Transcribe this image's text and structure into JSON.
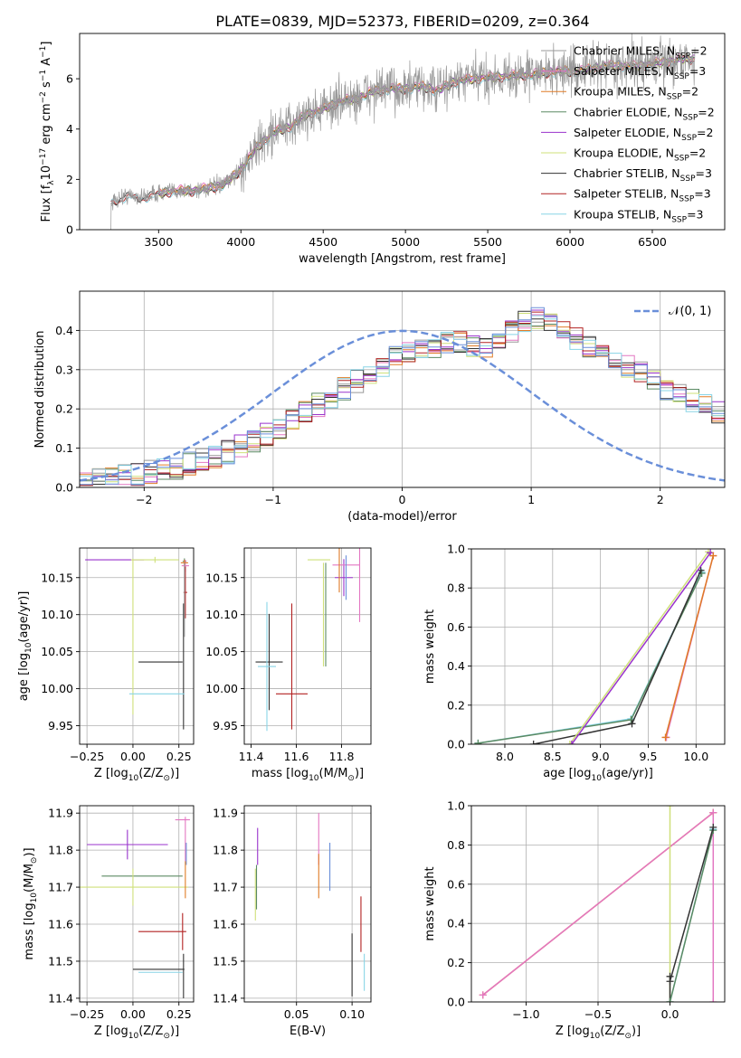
{
  "figure_title": "PLATE=0839, MJD=52373, FIBERID=0209, z=0.364",
  "colors": {
    "chabrier_miles": "#999999",
    "salpeter_miles": "#e377c2",
    "kroupa_miles": "#e07b26",
    "chabrier_elodie": "#5b8a63",
    "salpeter_elodie": "#9933cc",
    "kroupa_elodie": "#cfe07a",
    "chabrier_stelib": "#333333",
    "salpeter_stelib": "#b22222",
    "kroupa_stelib": "#88d4e6",
    "normal_curve": "#6a8fd9",
    "elodie_blue": "#6a8fd9"
  },
  "chart_data": [
    {
      "id": "spectrum",
      "type": "line",
      "xlabel": "wavelength [Angstrom, rest frame]",
      "ylabel": "Flux [f_λ10^-17 erg cm^-2 s^-1 A^-1]",
      "xlim": [
        3020,
        6940
      ],
      "ylim": [
        0,
        7.8
      ],
      "xticks": [
        3500,
        4000,
        4500,
        5000,
        5500,
        6000,
        6500
      ],
      "yticks": [
        0,
        2,
        4,
        6
      ],
      "grid": false,
      "legend_position": "top-right",
      "legend": [
        {
          "name": "Chabrier MILES, N_SSP=2",
          "color_key": "chabrier_miles"
        },
        {
          "name": "Salpeter MILES, N_SSP=3",
          "color_key": "salpeter_miles"
        },
        {
          "name": "Kroupa MILES, N_SSP=2",
          "color_key": "kroupa_miles"
        },
        {
          "name": "Chabrier ELODIE, N_SSP=2",
          "color_key": "chabrier_elodie"
        },
        {
          "name": "Salpeter ELODIE, N_SSP=2",
          "color_key": "salpeter_elodie"
        },
        {
          "name": "Kroupa ELODIE, N_SSP=2",
          "color_key": "kroupa_elodie"
        },
        {
          "name": "Chabrier STELIB, N_SSP=3",
          "color_key": "chabrier_stelib"
        },
        {
          "name": "Salpeter STELIB, N_SSP=3",
          "color_key": "salpeter_stelib"
        },
        {
          "name": "Kroupa STELIB, N_SSP=3",
          "color_key": "kroupa_stelib"
        }
      ],
      "model_continuum": [
        [
          3210,
          1.1
        ],
        [
          3300,
          1.35
        ],
        [
          3400,
          1.3
        ],
        [
          3500,
          1.45
        ],
        [
          3600,
          1.55
        ],
        [
          3700,
          1.55
        ],
        [
          3800,
          1.65
        ],
        [
          3900,
          1.8
        ],
        [
          4000,
          2.4
        ],
        [
          4100,
          3.3
        ],
        [
          4200,
          3.9
        ],
        [
          4300,
          4.1
        ],
        [
          4400,
          4.6
        ],
        [
          4500,
          4.8
        ],
        [
          4600,
          5.1
        ],
        [
          4700,
          5.2
        ],
        [
          4800,
          5.5
        ],
        [
          4900,
          5.6
        ],
        [
          5000,
          5.6
        ],
        [
          5100,
          5.7
        ],
        [
          5200,
          5.55
        ],
        [
          5300,
          5.9
        ],
        [
          5400,
          6.0
        ],
        [
          5500,
          6.05
        ],
        [
          5600,
          6.1
        ],
        [
          5700,
          6.15
        ],
        [
          5800,
          6.2
        ],
        [
          5900,
          6.3
        ],
        [
          6000,
          6.3
        ],
        [
          6100,
          6.35
        ],
        [
          6200,
          6.5
        ],
        [
          6300,
          6.55
        ],
        [
          6400,
          6.5
        ],
        [
          6500,
          6.6
        ],
        [
          6600,
          6.7
        ],
        [
          6700,
          6.8
        ]
      ]
    },
    {
      "id": "residuals",
      "type": "line",
      "xlabel": "(data-model)/error",
      "ylabel": "Normed distribution",
      "xlim": [
        -2.5,
        2.5
      ],
      "ylim": [
        0,
        0.5
      ],
      "xticks": [
        -2,
        -1,
        0,
        1,
        2
      ],
      "yticks": [
        0.0,
        0.1,
        0.2,
        0.3,
        0.4
      ],
      "grid": true,
      "legend_position": "top-right",
      "legend": [
        {
          "name": "𝒩(0, 1)",
          "color_key": "normal_curve"
        }
      ],
      "bin_width": 0.1,
      "bins_start": -2.5,
      "hist_base": [
        0.018,
        0.022,
        0.025,
        0.03,
        0.035,
        0.04,
        0.045,
        0.05,
        0.06,
        0.07,
        0.08,
        0.09,
        0.105,
        0.12,
        0.135,
        0.15,
        0.17,
        0.19,
        0.21,
        0.23,
        0.25,
        0.27,
        0.29,
        0.31,
        0.33,
        0.34,
        0.35,
        0.36,
        0.37,
        0.37,
        0.36,
        0.36,
        0.38,
        0.4,
        0.42,
        0.43,
        0.42,
        0.4,
        0.38,
        0.36,
        0.34,
        0.33,
        0.31,
        0.29,
        0.27,
        0.25,
        0.24,
        0.22,
        0.21,
        0.19,
        0.18,
        0.16,
        0.15,
        0.13,
        0.12,
        0.1,
        0.09,
        0.08,
        0.07,
        0.06,
        0.055,
        0.05,
        0.045,
        0.04,
        0.035,
        0.03,
        0.03,
        0.025,
        0.025,
        0.02
      ]
    },
    {
      "id": "age_vs_Z",
      "type": "scatter",
      "xlabel": "Z [log10(Z/Z⊙)]",
      "ylabel": "age  [log10(age/yr)]",
      "xlim": [
        -0.29,
        0.33
      ],
      "ylim": [
        9.925,
        10.19
      ],
      "xticks": [
        -0.25,
        0.0,
        0.25
      ],
      "yticks": [
        9.95,
        10.0,
        10.05,
        10.1,
        10.15
      ],
      "grid": true,
      "points": [
        {
          "key": "salpeter_elodie",
          "x": -0.1,
          "y": 10.174,
          "xerr": 0.16,
          "yerr": 0.0
        },
        {
          "key": "kroupa_elodie",
          "x": 0.12,
          "y": 10.174,
          "xerr": 0.13,
          "yerr": 0.004
        },
        {
          "key": "kroupa_elodie",
          "x": 0.0,
          "y": 10.07,
          "xerr": 0.0,
          "yerr": 0.105
        },
        {
          "key": "chabrier_elodie",
          "x": 0.28,
          "y": 10.172,
          "xerr": 0.01,
          "yerr": 0.004
        },
        {
          "key": "salpeter_miles",
          "x": 0.285,
          "y": 10.166,
          "xerr": 0.02,
          "yerr": 0.008
        },
        {
          "key": "kroupa_miles",
          "x": 0.28,
          "y": 10.17,
          "xerr": 0.02,
          "yerr": 0.004
        },
        {
          "key": "salpeter_stelib",
          "x": 0.285,
          "y": 10.13,
          "xerr": 0.01,
          "yerr": 0.035
        },
        {
          "key": "chabrier_stelib",
          "x": 0.15,
          "y": 10.036,
          "xerr": 0.12,
          "yerr": 0.0
        },
        {
          "key": "chabrier_stelib",
          "x": 0.275,
          "y": 10.03,
          "xerr": 0.0,
          "yerr": 0.085
        },
        {
          "key": "kroupa_stelib",
          "x": 0.13,
          "y": 9.993,
          "xerr": 0.15,
          "yerr": 0.0
        },
        {
          "key": "chabrier_miles",
          "x": 0.28,
          "y": 10.12,
          "xerr": 0.0,
          "yerr": 0.05
        }
      ]
    },
    {
      "id": "age_vs_mass",
      "type": "scatter",
      "xlabel": "mass [log10(M/M⊙)]",
      "ylabel": "",
      "xlim": [
        11.37,
        11.93
      ],
      "ylim": [
        9.925,
        10.19
      ],
      "xticks": [
        11.4,
        11.6,
        11.8
      ],
      "yticks": [
        9.95,
        10.0,
        10.05,
        10.1,
        10.15
      ],
      "grid": true,
      "points": [
        {
          "key": "kroupa_elodie",
          "x": 11.7,
          "y": 10.174,
          "xerr": 0.05,
          "yerr": 0.0
        },
        {
          "key": "kroupa_elodie",
          "x": 11.72,
          "y": 10.1,
          "xerr": 0.0,
          "yerr": 0.07
        },
        {
          "key": "chabrier_elodie",
          "x": 11.73,
          "y": 10.1,
          "xerr": 0.0,
          "yerr": 0.07
        },
        {
          "key": "salpeter_elodie",
          "x": 11.81,
          "y": 10.15,
          "xerr": 0.04,
          "yerr": 0.025
        },
        {
          "key": "salpeter_miles",
          "x": 11.82,
          "y": 10.167,
          "xerr": 0.06,
          "yerr": 0.0
        },
        {
          "key": "salpeter_miles",
          "x": 11.88,
          "y": 10.14,
          "xerr": 0.0,
          "yerr": 0.05
        },
        {
          "key": "kroupa_miles",
          "x": 11.79,
          "y": 10.16,
          "xerr": 0.0,
          "yerr": 0.03
        },
        {
          "key": "elodie_blue",
          "x": 11.82,
          "y": 10.15,
          "xerr": 0.0,
          "yerr": 0.03
        },
        {
          "key": "salpeter_stelib",
          "x": 11.58,
          "y": 9.993,
          "xerr": 0.07,
          "yerr": 0.0
        },
        {
          "key": "salpeter_stelib",
          "x": 11.58,
          "y": 10.03,
          "xerr": 0.0,
          "yerr": 0.085
        },
        {
          "key": "chabrier_stelib",
          "x": 11.48,
          "y": 10.036,
          "xerr": 0.06,
          "yerr": 0.065
        },
        {
          "key": "kroupa_stelib",
          "x": 11.47,
          "y": 10.03,
          "xerr": 0.04,
          "yerr": 0.087
        }
      ]
    },
    {
      "id": "mass_weight_vs_age",
      "type": "line",
      "xlabel": "age  [log10(age/yr)]",
      "ylabel": "mass weight",
      "xlim": [
        7.65,
        10.3
      ],
      "ylim": [
        0.0,
        1.0
      ],
      "xticks": [
        8.0,
        8.5,
        9.0,
        9.5,
        10.0
      ],
      "yticks": [
        0.0,
        0.2,
        0.4,
        0.6,
        0.8,
        1.0
      ],
      "grid": true,
      "series": [
        {
          "key": "kroupa_stelib",
          "x": [
            7.72,
            9.32,
            10.06
          ],
          "y": [
            0.005,
            0.13,
            0.88
          ]
        },
        {
          "key": "chabrier_elodie",
          "x": [
            7.72,
            9.32,
            10.06
          ],
          "y": [
            0.005,
            0.125,
            0.875
          ]
        },
        {
          "key": "chabrier_stelib",
          "x": [
            8.3,
            9.33,
            10.05
          ],
          "y": [
            0.0,
            0.105,
            0.89
          ]
        },
        {
          "key": "kroupa_elodie",
          "x": [
            8.68,
            10.13
          ],
          "y": [
            0.0,
            0.985
          ]
        },
        {
          "key": "salpeter_elodie",
          "x": [
            8.7,
            10.15
          ],
          "y": [
            0.0,
            0.98
          ]
        },
        {
          "key": "salpeter_miles",
          "x": [
            9.69,
            10.18
          ],
          "y": [
            0.035,
            0.965
          ]
        },
        {
          "key": "kroupa_miles",
          "x": [
            9.68,
            10.18
          ],
          "y": [
            0.035,
            0.965
          ]
        }
      ]
    },
    {
      "id": "mass_vs_Z",
      "type": "scatter",
      "xlabel": "Z [log10(Z/Z⊙)]",
      "ylabel": "mass [log10(M/M⊙)]",
      "xlim": [
        -0.29,
        0.33
      ],
      "ylim": [
        11.39,
        11.92
      ],
      "xticks": [
        -0.25,
        0.0,
        0.25
      ],
      "yticks": [
        11.4,
        11.5,
        11.6,
        11.7,
        11.8,
        11.9
      ],
      "grid": true,
      "points": [
        {
          "key": "salpeter_elodie",
          "x": -0.03,
          "y": 11.815,
          "xerr": 0.22,
          "yerr": 0.04
        },
        {
          "key": "chabrier_elodie",
          "x": 0.05,
          "y": 11.73,
          "xerr": 0.22,
          "yerr": 0.0
        },
        {
          "key": "kroupa_elodie",
          "x": 0.0,
          "y": 11.7,
          "xerr": 0.3,
          "yerr": 0.05
        },
        {
          "key": "salpeter_miles",
          "x": 0.27,
          "y": 11.882,
          "xerr": 0.04,
          "yerr": 0.0
        },
        {
          "key": "salpeter_miles",
          "x": 0.285,
          "y": 11.83,
          "xerr": 0.0,
          "yerr": 0.06
        },
        {
          "key": "elodie_blue",
          "x": 0.29,
          "y": 11.79,
          "xerr": 0.0,
          "yerr": 0.03
        },
        {
          "key": "kroupa_miles",
          "x": 0.285,
          "y": 11.72,
          "xerr": 0.0,
          "yerr": 0.05
        },
        {
          "key": "salpeter_stelib",
          "x": 0.16,
          "y": 11.58,
          "xerr": 0.13,
          "yerr": 0.0
        },
        {
          "key": "salpeter_stelib",
          "x": 0.27,
          "y": 11.58,
          "xerr": 0.0,
          "yerr": 0.05
        },
        {
          "key": "chabrier_stelib",
          "x": 0.14,
          "y": 11.478,
          "xerr": 0.14,
          "yerr": 0.0
        },
        {
          "key": "kroupa_stelib",
          "x": 0.15,
          "y": 11.47,
          "xerr": 0.12,
          "yerr": 0.0
        },
        {
          "key": "chabrier_stelib",
          "x": 0.275,
          "y": 11.46,
          "xerr": 0.0,
          "yerr": 0.06
        }
      ]
    },
    {
      "id": "mass_vs_EBV",
      "type": "scatter",
      "xlabel": "E(B-V)",
      "ylabel": "",
      "xlim": [
        0.003,
        0.117
      ],
      "ylim": [
        11.39,
        11.92
      ],
      "xticks": [
        0.05,
        0.1
      ],
      "yticks": [
        11.4,
        11.5,
        11.6,
        11.7,
        11.8,
        11.9
      ],
      "grid": true,
      "points": [
        {
          "key": "salpeter_elodie",
          "x": 0.015,
          "y": 11.81,
          "xerr": 0.0,
          "yerr": 0.05
        },
        {
          "key": "kroupa_elodie",
          "x": 0.013,
          "y": 11.68,
          "xerr": 0.0,
          "yerr": 0.07
        },
        {
          "key": "chabrier_elodie",
          "x": 0.014,
          "y": 11.7,
          "xerr": 0.0,
          "yerr": 0.06
        },
        {
          "key": "salpeter_miles",
          "x": 0.07,
          "y": 11.83,
          "xerr": 0.0,
          "yerr": 0.07
        },
        {
          "key": "kroupa_miles",
          "x": 0.07,
          "y": 11.73,
          "xerr": 0.0,
          "yerr": 0.06
        },
        {
          "key": "elodie_blue",
          "x": 0.08,
          "y": 11.755,
          "xerr": 0.0,
          "yerr": 0.065
        },
        {
          "key": "salpeter_stelib",
          "x": 0.108,
          "y": 11.6,
          "xerr": 0.0,
          "yerr": 0.075
        },
        {
          "key": "chabrier_stelib",
          "x": 0.1,
          "y": 11.49,
          "xerr": 0.0,
          "yerr": 0.085
        },
        {
          "key": "kroupa_stelib",
          "x": 0.111,
          "y": 11.47,
          "xerr": 0.0,
          "yerr": 0.05
        }
      ]
    },
    {
      "id": "mass_weight_vs_Z",
      "type": "line",
      "xlabel": "Z [log10(Z/Z⊙)]",
      "ylabel": "mass weight",
      "xlim": [
        -1.38,
        0.38
      ],
      "ylim": [
        0.0,
        1.0
      ],
      "xticks": [
        -1.0,
        -0.5,
        0.0
      ],
      "yticks": [
        0.0,
        0.2,
        0.4,
        0.6,
        0.8,
        1.0
      ],
      "grid": true,
      "series": [
        {
          "key": "salpeter_miles",
          "x": [
            0.3,
            0.3
          ],
          "y": [
            0.0,
            0.965
          ]
        },
        {
          "key": "kroupa_miles",
          "x": [
            -1.3,
            0.3
          ],
          "y": [
            0.035,
            0.965
          ]
        },
        {
          "key": "salpeter_miles",
          "x": [
            -1.3,
            0.3
          ],
          "y": [
            0.035,
            0.965
          ]
        },
        {
          "key": "kroupa_elodie",
          "x": [
            0.0,
            0.0
          ],
          "y": [
            0.0,
            1.0
          ]
        },
        {
          "key": "chabrier_stelib",
          "x": [
            0.0,
            0.0
          ],
          "y": [
            0.0,
            0.13
          ]
        },
        {
          "key": "kroupa_stelib",
          "x": [
            0.0,
            0.3
          ],
          "y": [
            0.0,
            0.88
          ]
        },
        {
          "key": "chabrier_elodie",
          "x": [
            0.0,
            0.3
          ],
          "y": [
            0.0,
            0.875
          ]
        },
        {
          "key": "chabrier_stelib",
          "x": [
            0.0,
            0.3
          ],
          "y": [
            0.105,
            0.89
          ]
        }
      ]
    }
  ]
}
